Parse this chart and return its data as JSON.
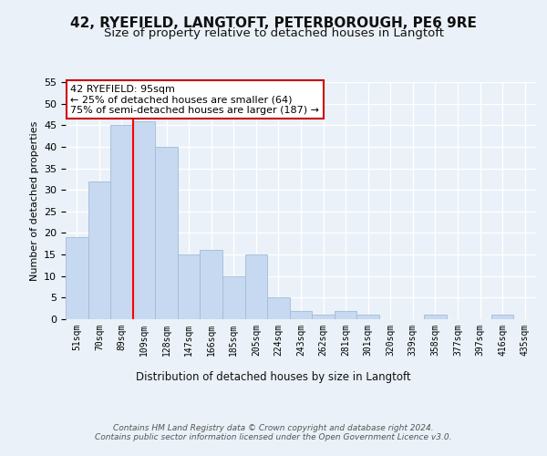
{
  "title": "42, RYEFIELD, LANGTOFT, PETERBOROUGH, PE6 9RE",
  "subtitle": "Size of property relative to detached houses in Langtoft",
  "xlabel": "Distribution of detached houses by size in Langtoft",
  "ylabel": "Number of detached properties",
  "categories": [
    "51sqm",
    "70sqm",
    "89sqm",
    "109sqm",
    "128sqm",
    "147sqm",
    "166sqm",
    "185sqm",
    "205sqm",
    "224sqm",
    "243sqm",
    "262sqm",
    "281sqm",
    "301sqm",
    "320sqm",
    "339sqm",
    "358sqm",
    "377sqm",
    "397sqm",
    "416sqm",
    "435sqm"
  ],
  "values": [
    19,
    32,
    45,
    46,
    40,
    15,
    16,
    10,
    15,
    5,
    2,
    1,
    2,
    1,
    0,
    0,
    1,
    0,
    0,
    1,
    0
  ],
  "bar_color": "#c6d9f0",
  "bar_edge_color": "#a0bcd8",
  "red_line_x": 2.5,
  "annotation_text": "42 RYEFIELD: 95sqm\n← 25% of detached houses are smaller (64)\n75% of semi-detached houses are larger (187) →",
  "annotation_box_color": "#ffffff",
  "annotation_box_edge": "#cc0000",
  "footer": "Contains HM Land Registry data © Crown copyright and database right 2024.\nContains public sector information licensed under the Open Government Licence v3.0.",
  "ylim": [
    0,
    55
  ],
  "yticks": [
    0,
    5,
    10,
    15,
    20,
    25,
    30,
    35,
    40,
    45,
    50,
    55
  ],
  "bg_color": "#eaf1f8",
  "plot_bg_color": "#eaf1f8",
  "grid_color": "#ffffff",
  "title_fontsize": 11,
  "subtitle_fontsize": 9.5
}
